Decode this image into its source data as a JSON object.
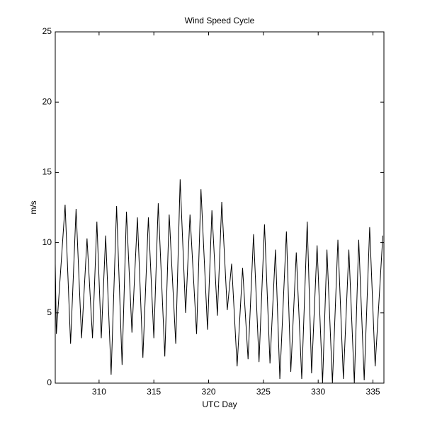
{
  "chart_data": {
    "type": "line",
    "title": "Wind Speed Cycle",
    "xlabel": "UTC Day",
    "ylabel": "m/s",
    "x": [
      306,
      306.1,
      306.9,
      307.4,
      307.9,
      308.4,
      308.9,
      309.4,
      309.8,
      310.2,
      310.6,
      311.1,
      311.6,
      312.1,
      312.5,
      313.0,
      313.5,
      314.0,
      314.5,
      315.0,
      315.4,
      316.0,
      316.4,
      317.0,
      317.4,
      317.9,
      318.3,
      318.9,
      319.3,
      319.9,
      320.3,
      320.8,
      321.2,
      321.7,
      322.1,
      322.6,
      323.1,
      323.6,
      324.1,
      324.6,
      325.1,
      325.6,
      326.1,
      326.5,
      327.1,
      327.5,
      328.0,
      328.5,
      329.0,
      329.4,
      329.9,
      330.4,
      330.8,
      331.3,
      331.8,
      332.3,
      332.8,
      333.3,
      333.7,
      334.2,
      334.7,
      335.2,
      335.9
    ],
    "series": [
      {
        "color": "#000000",
        "values": [
          8.5,
          3.5,
          12.7,
          2.8,
          12.4,
          3.2,
          10.3,
          3.2,
          11.5,
          3.2,
          10.5,
          0.6,
          12.6,
          1.3,
          12.2,
          3.6,
          11.8,
          1.8,
          11.8,
          3.2,
          12.8,
          1.9,
          12,
          2.8,
          14.5,
          5,
          12,
          3.5,
          13.8,
          3.8,
          12.3,
          4.8,
          12.9,
          5.2,
          8.5,
          1.2,
          8.2,
          1.7,
          10.6,
          1.5,
          11.3,
          1.4,
          9.5,
          0.3,
          10.8,
          0.8,
          9.3,
          0.3,
          11.5,
          0.7,
          9.8,
          0,
          9.5,
          0,
          10.2,
          0.3,
          9.5,
          0,
          10.2,
          0.2,
          11.1,
          1.2,
          10.5
        ]
      }
    ],
    "xlim": [
      306,
      336
    ],
    "xticks": [
      310,
      315,
      320,
      325,
      330,
      335
    ],
    "ylim": [
      0,
      25
    ],
    "yticks": [
      0,
      5,
      10,
      15,
      20,
      25
    ]
  }
}
